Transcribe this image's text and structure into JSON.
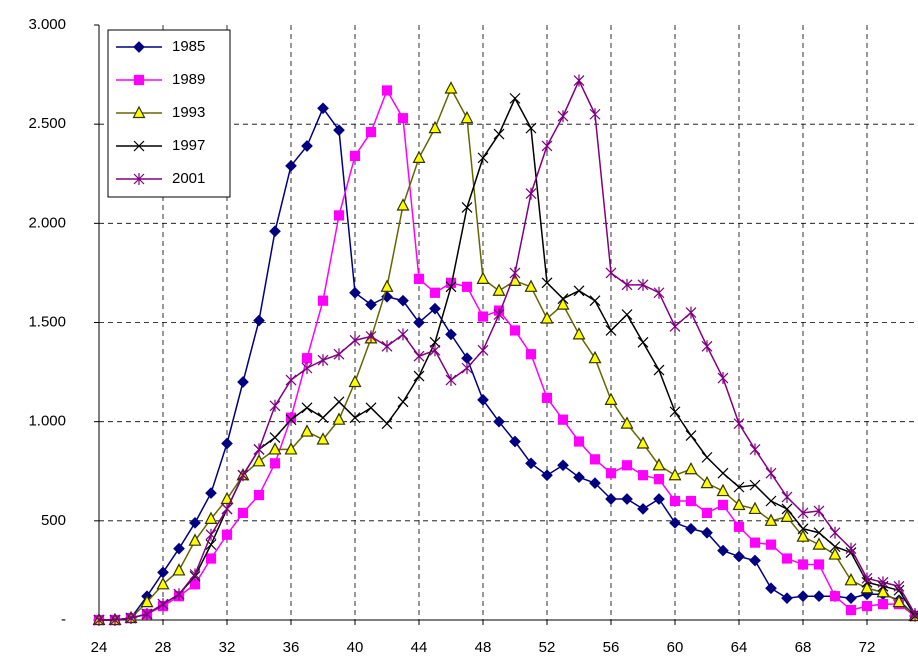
{
  "chart_data": {
    "type": "line",
    "x": [
      24,
      25,
      26,
      27,
      28,
      29,
      30,
      31,
      32,
      33,
      34,
      35,
      36,
      37,
      38,
      39,
      40,
      41,
      42,
      43,
      44,
      45,
      46,
      47,
      48,
      49,
      50,
      51,
      52,
      53,
      54,
      55,
      56,
      57,
      58,
      59,
      60,
      61,
      62,
      63,
      64,
      65,
      66,
      67,
      68,
      69,
      70,
      71,
      72,
      73,
      74,
      75
    ],
    "series": [
      {
        "name": "1985",
        "color": "#000080",
        "marker": "diamond",
        "marker_fill": "#000080",
        "values": [
          0,
          0,
          10,
          120,
          240,
          360,
          490,
          640,
          890,
          1200,
          1510,
          1960,
          2290,
          2390,
          2580,
          2470,
          1650,
          1590,
          1630,
          1610,
          1500,
          1570,
          1440,
          1320,
          1110,
          1000,
          900,
          790,
          730,
          780,
          720,
          690,
          610,
          610,
          560,
          610,
          490,
          460,
          440,
          350,
          320,
          300,
          160,
          110,
          120,
          120,
          120,
          110,
          130,
          130,
          100,
          20
        ]
      },
      {
        "name": "1989",
        "color": "#ff00ff",
        "marker": "square",
        "marker_fill": "#ff00ff",
        "values": [
          0,
          0,
          10,
          30,
          70,
          120,
          180,
          310,
          430,
          540,
          630,
          790,
          1020,
          1320,
          1610,
          2040,
          2340,
          2460,
          2670,
          2530,
          1720,
          1650,
          1700,
          1680,
          1530,
          1560,
          1460,
          1340,
          1120,
          1010,
          900,
          810,
          740,
          780,
          730,
          710,
          600,
          600,
          540,
          580,
          470,
          390,
          380,
          310,
          280,
          280,
          120,
          50,
          70,
          80,
          80,
          20
        ]
      },
      {
        "name": "1993",
        "color": "#666600",
        "marker": "triangle",
        "marker_fill": "#ffff00",
        "values": [
          0,
          0,
          10,
          90,
          180,
          250,
          400,
          510,
          610,
          730,
          800,
          860,
          860,
          950,
          910,
          1010,
          1200,
          1420,
          1680,
          2090,
          2330,
          2480,
          2680,
          2530,
          1720,
          1660,
          1710,
          1680,
          1520,
          1590,
          1440,
          1320,
          1110,
          990,
          890,
          780,
          730,
          760,
          690,
          650,
          580,
          560,
          500,
          520,
          420,
          380,
          330,
          200,
          160,
          140,
          90,
          20
        ]
      },
      {
        "name": "1997",
        "color": "#000000",
        "marker": "x",
        "marker_fill": "none",
        "values": [
          0,
          0,
          10,
          30,
          80,
          130,
          220,
          380,
          560,
          730,
          860,
          920,
          1010,
          1070,
          1020,
          1100,
          1020,
          1070,
          990,
          1100,
          1230,
          1400,
          1680,
          2080,
          2330,
          2450,
          2630,
          2480,
          1700,
          1620,
          1660,
          1610,
          1460,
          1540,
          1400,
          1260,
          1050,
          930,
          820,
          740,
          670,
          680,
          600,
          560,
          460,
          440,
          370,
          340,
          190,
          170,
          150,
          20
        ]
      },
      {
        "name": "2001",
        "color": "#800080",
        "marker": "asterisk",
        "marker_fill": "none",
        "values": [
          0,
          0,
          10,
          30,
          80,
          130,
          230,
          430,
          560,
          730,
          860,
          1080,
          1210,
          1270,
          1310,
          1340,
          1410,
          1430,
          1380,
          1440,
          1330,
          1360,
          1210,
          1270,
          1360,
          1540,
          1750,
          2150,
          2390,
          2540,
          2720,
          2550,
          1750,
          1690,
          1690,
          1650,
          1480,
          1550,
          1380,
          1220,
          990,
          860,
          740,
          620,
          540,
          550,
          440,
          360,
          210,
          190,
          170,
          30
        ]
      }
    ],
    "xlim": [
      24,
      75
    ],
    "xticks": [
      24,
      28,
      32,
      36,
      40,
      44,
      48,
      52,
      56,
      60,
      64,
      68,
      72
    ],
    "ylim": [
      0,
      3000
    ],
    "yticks": [
      {
        "value": 0,
        "label": "-"
      },
      500,
      {
        "value": 1000,
        "label": "1.000"
      },
      {
        "value": 1500,
        "label": "1.500"
      },
      {
        "value": 2000,
        "label": "2.000"
      },
      {
        "value": 2500,
        "label": "2.500"
      },
      {
        "value": 3000,
        "label": "3.000"
      }
    ],
    "grid": true,
    "legend": "top-left"
  }
}
